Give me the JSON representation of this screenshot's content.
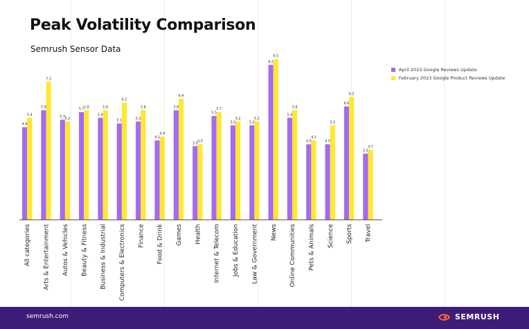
{
  "header": {
    "title": "Peak Volatility Comparison",
    "subtitle": "Semrush Sensor Data"
  },
  "footer": {
    "url": "semrush.com",
    "brand": "SEMRUSH"
  },
  "colors": {
    "april": "#a36bf2",
    "february": "#ffe733",
    "footer_bg": "#3d1d7a",
    "brand_accent": "#ff642d"
  },
  "chart_data": {
    "type": "bar",
    "title": "Peak Volatility Comparison",
    "subtitle": "Semrush Sensor Data",
    "xlabel": "",
    "ylabel": "",
    "ylim": [
      0,
      9
    ],
    "legend_position": "top-right",
    "categories": [
      "All categories",
      "Arts & Entertainment",
      "Autos & Vehicles",
      "Beauty & Fitness",
      "Business & Industrial",
      "Computers & Electronics",
      "Finance",
      "Food & Drink",
      "Games",
      "Health",
      "Internet & Telecom",
      "Jobs & Education",
      "Law & Government",
      "News",
      "Online Communities",
      "Pets & Animals",
      "Science",
      "Sports",
      "Travel"
    ],
    "series": [
      {
        "name": "April 2023 Google Reviews Update",
        "values": [
          4.9,
          5.8,
          5.3,
          5.7,
          5.4,
          5.1,
          5.2,
          4.2,
          5.8,
          3.9,
          5.5,
          5.0,
          5.0,
          8.2,
          5.4,
          4.0,
          4.0,
          6.0,
          3.5
        ],
        "labels": [
          "4.9",
          "5.8",
          "5.3",
          "5.7",
          "5.4",
          "5.1",
          "5.2",
          "4.2",
          "5.8",
          "3.9",
          "5.5",
          "5.0",
          "5.0",
          "8.2",
          "5.4",
          "4.0",
          "4.0",
          "6.0",
          "3.5"
        ]
      },
      {
        "name": "February 2023 Google Product Reviews Update",
        "values": [
          5.4,
          7.3,
          5.2,
          5.8,
          5.8,
          6.2,
          5.8,
          4.4,
          6.4,
          4.0,
          5.7,
          5.2,
          5.2,
          8.5,
          5.8,
          4.2,
          5.0,
          6.5,
          3.7
        ],
        "labels": [
          "5.4",
          "7.3",
          "5.2",
          "5.8",
          "5.8",
          "6.2",
          "5.8",
          "4.4",
          "6.4",
          "4.0",
          "5.7",
          "5.2",
          "5.2",
          "8.5",
          "5.8",
          "4.2",
          "5.0",
          "6.5",
          "3.7"
        ]
      }
    ]
  }
}
